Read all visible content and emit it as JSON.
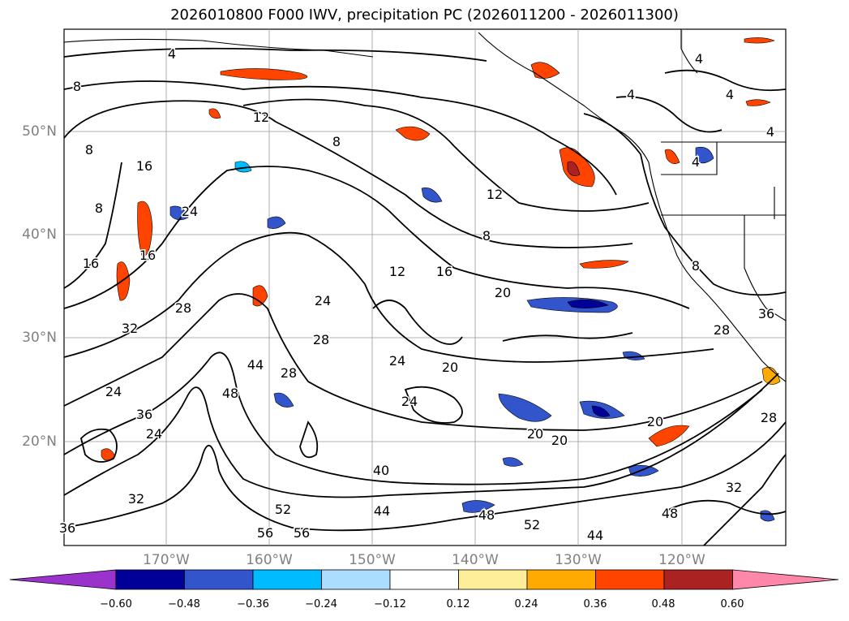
{
  "title": "2026010800 F000 IWV, precipitation PC (2026011200 - 2026011300)",
  "lat_labels": [
    "50°N",
    "40°N",
    "30°N",
    "20°N"
  ],
  "lon_labels": [
    "170°W",
    "160°W",
    "150°W",
    "140°W",
    "130°W",
    "120°W"
  ],
  "colorbar": {
    "colors": [
      "#9933cc",
      "#000099",
      "#3355cc",
      "#00bbff",
      "#aaddff",
      "#ffffff",
      "#ffee99",
      "#ffaa00",
      "#ff4400",
      "#aa2222",
      "#ff88aa"
    ],
    "ticks": [
      "−0.60",
      "−0.48",
      "−0.36",
      "−0.24",
      "−0.12",
      "0.12",
      "0.24",
      "0.36",
      "0.48",
      "0.60"
    ]
  },
  "contour_labels": [
    "4",
    "4",
    "4",
    "4",
    "4",
    "4",
    "8",
    "8",
    "8",
    "8",
    "8",
    "8",
    "12",
    "12",
    "12",
    "16",
    "16",
    "16",
    "16",
    "20",
    "20",
    "20",
    "20",
    "20",
    "24",
    "24",
    "24",
    "24",
    "24",
    "24",
    "28",
    "28",
    "28",
    "28",
    "28",
    "32",
    "32",
    "32",
    "36",
    "36",
    "36",
    "40",
    "44",
    "44",
    "44",
    "48",
    "48",
    "48",
    "52",
    "52",
    "56",
    "56"
  ]
}
